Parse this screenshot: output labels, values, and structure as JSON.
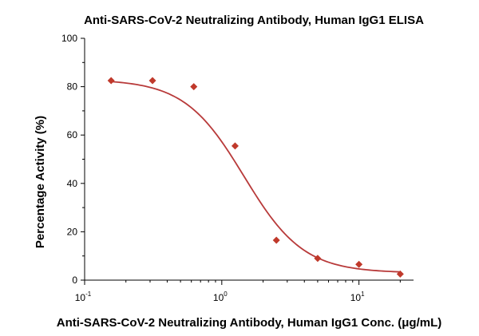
{
  "chart_data": {
    "type": "scatter",
    "title": "Anti-SARS-CoV-2 Neutralizing Antibody, Human IgG1 ELISA",
    "xlabel": "Anti-SARS-CoV-2 Neutralizing Antibody, Human IgG1 Conc. (μg/mL)",
    "ylabel": "Percentage Activity (%)",
    "x_scale": "log",
    "xlim": [
      0.1,
      25
    ],
    "ylim": [
      0,
      100
    ],
    "x_ticks": [
      {
        "value": 0.1,
        "base": "10",
        "exp": "-1"
      },
      {
        "value": 1,
        "base": "10",
        "exp": "0"
      },
      {
        "value": 10,
        "base": "10",
        "exp": "1"
      }
    ],
    "y_ticks": [
      "0",
      "20",
      "40",
      "60",
      "80",
      "100"
    ],
    "grid": false,
    "marker_color": "#c0392b",
    "curve_color": "#b83a3a",
    "series": [
      {
        "x": [
          0.156,
          0.3125,
          0.625,
          1.25,
          2.5,
          5,
          10,
          20
        ],
        "y": [
          82.5,
          82.5,
          80,
          55.5,
          16.5,
          9,
          6.5,
          2.5
        ]
      }
    ],
    "fit_curve": {
      "model": "4PL",
      "top": 83,
      "bottom": 3,
      "ec50": 1.45,
      "hill": 2.0
    }
  }
}
